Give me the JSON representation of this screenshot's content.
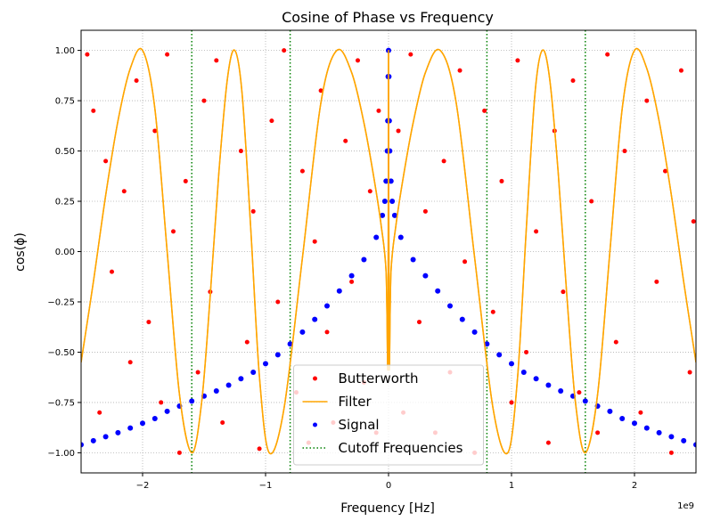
{
  "chart_data": {
    "type": "mixed",
    "title": "Cosine of Phase vs Frequency",
    "x_label": "Frequency [Hz]",
    "y_label": "cos(ϕ)",
    "x_offset_label": "1e9",
    "xlim": [
      -2.5,
      2.5
    ],
    "ylim": [
      -1.1,
      1.1
    ],
    "xticks": [
      {
        "value": -2,
        "label": "−2"
      },
      {
        "value": -1,
        "label": "−1"
      },
      0,
      1,
      2
    ],
    "yticks": [
      {
        "value": -1,
        "label": "−1.00"
      },
      {
        "value": -0.75,
        "label": "−0.75"
      },
      {
        "value": -0.5,
        "label": "−0.50"
      },
      {
        "value": -0.25,
        "label": "−0.25"
      },
      {
        "value": 0,
        "label": "0.00"
      },
      {
        "value": 0.25,
        "label": "0.25"
      },
      {
        "value": 0.5,
        "label": "0.50"
      },
      {
        "value": 0.75,
        "label": "0.75"
      },
      {
        "value": 1,
        "label": "1.00"
      }
    ],
    "grid": true,
    "legend": "lower center",
    "series": [
      {
        "name": "Butterworth",
        "type": "scatter",
        "color": "#ff0000",
        "x": [
          -2.45,
          -2.4,
          -2.35,
          -2.3,
          -2.25,
          -2.2,
          -2.15,
          -2.1,
          -2.05,
          -1.95,
          -1.9,
          -1.85,
          -1.8,
          -1.75,
          -1.7,
          -1.65,
          -1.55,
          -1.5,
          -1.45,
          -1.4,
          -1.35,
          -1.2,
          -1.15,
          -1.1,
          -1.05,
          -0.95,
          -0.9,
          -0.85,
          -0.75,
          -0.7,
          -0.65,
          -0.6,
          -0.55,
          -0.5,
          -0.45,
          -0.35,
          -0.3,
          -0.25,
          -0.2,
          -0.15,
          -0.1,
          -0.08,
          0.08,
          0.12,
          0.18,
          0.25,
          0.3,
          0.38,
          0.45,
          0.5,
          0.58,
          0.62,
          0.7,
          0.78,
          0.85,
          0.92,
          1.0,
          1.05,
          1.12,
          1.2,
          1.3,
          1.35,
          1.42,
          1.5,
          1.55,
          1.65,
          1.7,
          1.78,
          1.85,
          1.92,
          2.05,
          2.1,
          2.18,
          2.25,
          2.3,
          2.38,
          2.45,
          2.48
        ],
        "values": [
          0.98,
          0.7,
          -0.8,
          0.45,
          -0.1,
          -0.9,
          0.3,
          -0.55,
          0.85,
          -0.35,
          0.6,
          -0.75,
          0.98,
          0.1,
          -1.0,
          0.35,
          -0.6,
          0.75,
          -0.2,
          0.95,
          -0.85,
          0.5,
          -0.45,
          0.2,
          -0.98,
          0.65,
          -0.25,
          1.0,
          -0.7,
          0.4,
          -0.95,
          0.05,
          0.8,
          -0.4,
          -0.85,
          0.55,
          -0.15,
          0.95,
          -0.65,
          0.3,
          -0.9,
          0.7,
          0.6,
          -0.8,
          0.98,
          -0.35,
          0.2,
          -0.9,
          0.45,
          -0.6,
          0.9,
          -0.05,
          -1.0,
          0.7,
          -0.3,
          0.35,
          -0.75,
          0.95,
          -0.5,
          0.1,
          -0.95,
          0.6,
          -0.2,
          0.85,
          -0.7,
          0.25,
          -0.9,
          0.98,
          -0.45,
          0.5,
          -0.8,
          0.75,
          -0.15,
          0.4,
          -1.0,
          0.9,
          -0.6,
          0.15
        ]
      },
      {
        "name": "Filter",
        "type": "line",
        "color": "#ffa500",
        "x": [
          -2.5,
          -2.4,
          -2.3,
          -2.2,
          -2.1,
          -2.0,
          -1.9,
          -1.8,
          -1.7,
          -1.6,
          -1.52,
          -1.45,
          -1.38,
          -1.31,
          -1.25,
          -1.19,
          -1.12,
          -1.05,
          -0.97,
          -0.85,
          -0.7,
          -0.55,
          -0.42,
          -0.3,
          -0.2,
          -0.12,
          -0.06,
          -0.02,
          -0.005,
          0,
          0.005,
          0.02,
          0.06,
          0.12,
          0.2,
          0.3,
          0.42,
          0.55,
          0.7,
          0.85,
          0.97,
          1.05,
          1.12,
          1.19,
          1.25,
          1.31,
          1.38,
          1.45,
          1.52,
          1.6,
          1.7,
          1.8,
          1.9,
          2.0,
          2.1,
          2.2,
          2.3,
          2.4,
          2.5
        ],
        "values": [
          -0.55,
          -0.15,
          0.28,
          0.65,
          0.91,
          1,
          0.71,
          0,
          -0.71,
          -1,
          -0.75,
          -0.22,
          0.39,
          0.86,
          1,
          0.78,
          0.11,
          -0.62,
          -1,
          -0.78,
          -0.03,
          0.74,
          1,
          0.89,
          0.64,
          0.37,
          0.13,
          -0.1,
          -0.55,
          1,
          -0.55,
          -0.1,
          0.13,
          0.37,
          0.64,
          0.89,
          1,
          0.74,
          -0.03,
          -0.78,
          -1,
          -0.62,
          0.11,
          0.78,
          1,
          0.86,
          0.39,
          -0.22,
          -0.75,
          -1,
          -0.71,
          0,
          0.71,
          1,
          0.91,
          0.65,
          0.28,
          -0.15,
          -0.55
        ]
      },
      {
        "name": "Signal",
        "type": "scatter",
        "color": "#0000ff",
        "x": [
          -2.5,
          -2.4,
          -2.3,
          -2.2,
          -2.1,
          -2.0,
          -1.9,
          -1.8,
          -1.7,
          -1.6,
          -1.5,
          -1.4,
          -1.3,
          -1.2,
          -1.1,
          -1.0,
          -0.9,
          -0.8,
          -0.7,
          -0.6,
          -0.5,
          -0.4,
          -0.3,
          -0.2,
          -0.1,
          -0.05,
          -0.03,
          -0.02,
          -0.01,
          -0.006,
          -0.003,
          0,
          0.003,
          0.006,
          0.01,
          0.02,
          0.03,
          0.05,
          0.1,
          0.2,
          0.3,
          0.4,
          0.5,
          0.6,
          0.7,
          0.8,
          0.9,
          1.0,
          1.1,
          1.2,
          1.3,
          1.4,
          1.5,
          1.6,
          1.7,
          1.8,
          1.9,
          2.0,
          2.1,
          2.2,
          2.3,
          2.4,
          2.5
        ],
        "values": [
          -0.96,
          -0.94,
          -0.92,
          -0.9,
          -0.877,
          -0.853,
          -0.83,
          -0.794,
          -0.768,
          -0.743,
          -0.718,
          -0.693,
          -0.664,
          -0.632,
          -0.6,
          -0.557,
          -0.513,
          -0.459,
          -0.4,
          -0.337,
          -0.27,
          -0.196,
          -0.12,
          -0.04,
          0.071,
          0.18,
          0.25,
          0.35,
          0.5,
          0.65,
          0.87,
          1,
          0.87,
          0.65,
          0.5,
          0.35,
          0.25,
          0.18,
          0.071,
          -0.04,
          -0.12,
          -0.196,
          -0.27,
          -0.337,
          -0.4,
          -0.459,
          -0.513,
          -0.557,
          -0.6,
          -0.632,
          -0.664,
          -0.693,
          -0.718,
          -0.743,
          -0.768,
          -0.794,
          -0.83,
          -0.853,
          -0.877,
          -0.9,
          -0.92,
          -0.94,
          -0.96
        ]
      },
      {
        "name": "Cutoff Frequencies",
        "type": "vline",
        "color": "#008000",
        "x": [
          -1.6,
          -0.8,
          0.8,
          1.6
        ]
      }
    ]
  }
}
